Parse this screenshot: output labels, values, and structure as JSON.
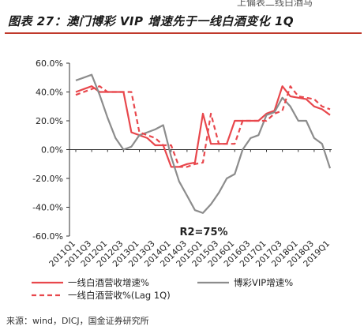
{
  "page": {
    "top_fragment": "上偏表二线白酒马",
    "title": "图表 27：澳门博彩 VIP 增速先于一线白酒变化 1Q",
    "source": "来源：wind，DICJ，国金证券研究所",
    "accent_color": "#c0392b"
  },
  "chart_data": {
    "type": "line",
    "title": "",
    "annotation": "R2=75%",
    "ylim": [
      -60,
      60
    ],
    "yticks": [
      -60,
      -40,
      -20,
      0,
      20,
      40,
      60
    ],
    "ytick_labels": [
      "-60.0%",
      "-40.0%",
      "-20.0%",
      "0.0%",
      "20.0%",
      "40.0%",
      "60.0%"
    ],
    "x": [
      "2011Q1",
      "2011Q2",
      "2011Q3",
      "2011Q4",
      "2012Q1",
      "2012Q2",
      "2012Q3",
      "2012Q4",
      "2013Q1",
      "2013Q2",
      "2013Q3",
      "2013Q4",
      "2014Q1",
      "2014Q2",
      "2014Q3",
      "2014Q4",
      "2015Q1",
      "2015Q2",
      "2015Q3",
      "2015Q4",
      "2016Q1",
      "2016Q2",
      "2016Q3",
      "2016Q4",
      "2017Q1",
      "2017Q2",
      "2017Q3",
      "2017Q4",
      "2018Q1",
      "2018Q2",
      "2018Q3",
      "2018Q4",
      "2019Q1"
    ],
    "xtick_labels": [
      "2011Q1",
      "2011Q3",
      "2012Q1",
      "2012Q3",
      "2013Q1",
      "2013Q3",
      "2014Q1",
      "2014Q3",
      "2015Q1",
      "2015Q3",
      "2016Q1",
      "2016Q3",
      "2017Q1",
      "2017Q3",
      "2018Q1",
      "2018Q3",
      "2019Q1"
    ],
    "grid": false,
    "legend_position": "bottom",
    "series": [
      {
        "name": "一线白酒营收增速%",
        "color": "#e8474c",
        "dash": "solid",
        "values": [
          40,
          42,
          44,
          40,
          40,
          40,
          40,
          12,
          10,
          8,
          3,
          3,
          -12,
          -12,
          -10,
          -9,
          25,
          4,
          4,
          4,
          20,
          20,
          20,
          20,
          25,
          27,
          44,
          37,
          36,
          35,
          30,
          28,
          24
        ]
      },
      {
        "name": "博彩VIP增速%",
        "color": "#8c8c8c",
        "dash": "solid",
        "values": [
          48,
          50,
          52,
          38,
          22,
          8,
          0,
          2,
          10,
          12,
          14,
          17,
          -5,
          -22,
          -32,
          -42,
          -44,
          -38,
          -30,
          -20,
          -17,
          0,
          8,
          10,
          24,
          26,
          36,
          30,
          20,
          20,
          8,
          4,
          -13
        ]
      },
      {
        "name": "一线白酒营收%(Lag 1Q)",
        "color": "#e8474c",
        "dash": "dashed",
        "values": [
          38,
          40,
          42,
          44,
          40,
          40,
          40,
          40,
          12,
          10,
          8,
          3,
          3,
          -12,
          -12,
          -10,
          -9,
          25,
          4,
          4,
          4,
          20,
          20,
          20,
          20,
          25,
          27,
          44,
          37,
          36,
          35,
          30,
          28
        ]
      }
    ]
  }
}
